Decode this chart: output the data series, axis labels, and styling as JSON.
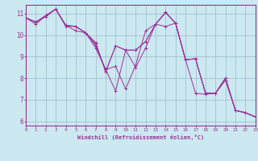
{
  "xlabel": "Windchill (Refroidissement éolien,°C)",
  "bg_color": "#cce8f0",
  "line_color": "#993399",
  "grid_color": "#99bbcc",
  "xmin": 0,
  "xmax": 23,
  "ymin": 5.8,
  "ymax": 11.4,
  "yticks": [
    6,
    7,
    8,
    9,
    10,
    11
  ],
  "series": [
    [
      10.8,
      10.6,
      10.85,
      11.2,
      10.4,
      10.4,
      10.1,
      9.5,
      8.4,
      8.55,
      7.5,
      8.6,
      10.2,
      10.5,
      11.05,
      10.55,
      8.85,
      8.9,
      7.3,
      7.3,
      8.0,
      6.5,
      6.4,
      6.2
    ],
    [
      10.8,
      10.6,
      10.9,
      11.2,
      10.45,
      10.4,
      10.1,
      9.65,
      8.3,
      9.5,
      9.3,
      9.3,
      9.7,
      10.5,
      11.05,
      10.55,
      8.85,
      8.9,
      7.3,
      7.3,
      8.0,
      6.5,
      6.4,
      6.2
    ],
    [
      10.8,
      10.6,
      10.9,
      11.2,
      10.45,
      10.4,
      10.1,
      9.6,
      8.3,
      9.5,
      9.3,
      9.3,
      9.7,
      10.5,
      11.05,
      10.55,
      8.85,
      8.9,
      7.3,
      7.3,
      8.0,
      6.5,
      6.4,
      6.2
    ],
    [
      10.8,
      10.5,
      10.9,
      11.2,
      10.45,
      10.2,
      10.1,
      9.4,
      8.4,
      7.4,
      9.3,
      8.5,
      9.4,
      10.5,
      10.4,
      10.55,
      8.85,
      7.3,
      7.25,
      7.3,
      7.9,
      6.5,
      6.4,
      6.2
    ]
  ]
}
